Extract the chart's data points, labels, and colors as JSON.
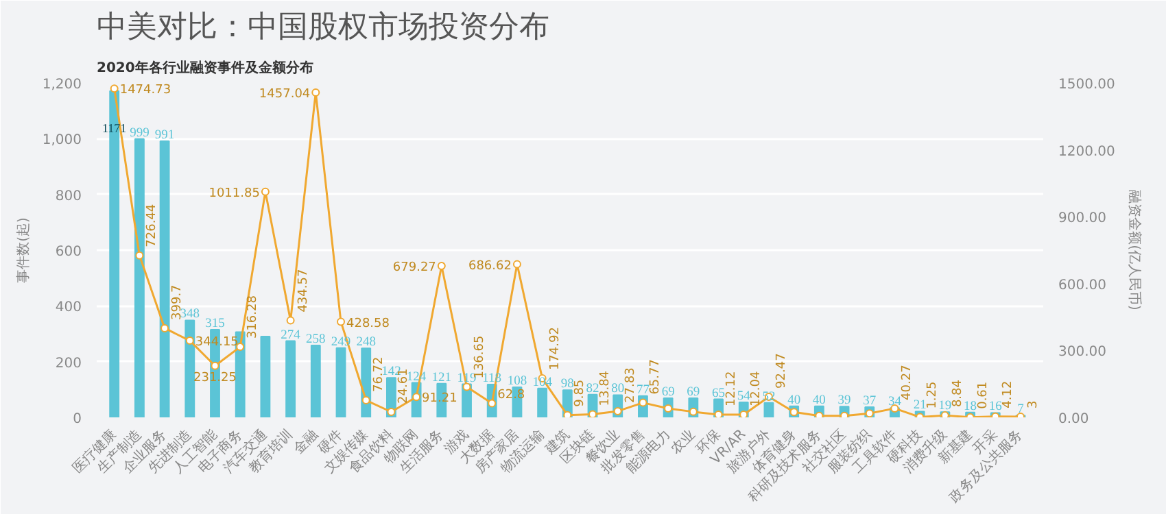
{
  "chart_data": {
    "type": "bar",
    "title": "中美对比：中国股权市场投资分布",
    "subtitle": "2020年各行业融资事件及金额分布",
    "ylabel": "事件数(起)",
    "y2label": "融资金额(亿人民币)",
    "categories": [
      "医疗健康",
      "生产制造",
      "企业服务",
      "先进制造",
      "人工智能",
      "电子商务",
      "汽车交通",
      "教育培训",
      "金融",
      "硬件",
      "文娱传媒",
      "食品饮料",
      "物联网",
      "生活服务",
      "游戏",
      "大数据",
      "房产家居",
      "物流运输",
      "建筑",
      "区块链",
      "餐饮业",
      "批发零售",
      "能源电力",
      "农业",
      "环保",
      "VR/AR",
      "旅游户外",
      "体育健身",
      "科研及技术服务",
      "社交社区",
      "服装纺织",
      "工具软件",
      "硬科技",
      "消费升级",
      "新基建",
      "开采",
      "政务及公共服务"
    ],
    "series": [
      {
        "color": "#5bc4d6",
        "values": [
          1171,
          999,
          991,
          348,
          315,
          306,
          290,
          274,
          258,
          249,
          248,
          142,
          124,
          121,
          119,
          118,
          108,
          104,
          98,
          82,
          80,
          77,
          69,
          69,
          65,
          54,
          52,
          40,
          40,
          39,
          37,
          34,
          21,
          19,
          18,
          16,
          7
        ],
        "value_labels": [
          "1171",
          "999",
          "991",
          "348",
          "315",
          null,
          null,
          "274",
          "258",
          "249",
          "248",
          "142",
          "124",
          "121",
          "119",
          "118",
          "108",
          "104",
          "98",
          "82",
          "80",
          "77",
          "69",
          "69",
          "65",
          "54",
          "52",
          "40",
          "40",
          "39",
          "37",
          "34",
          "21",
          "19",
          "18",
          "16",
          "7"
        ]
      },
      {
        "type": "line",
        "axis": "y2",
        "color": "#f0a830",
        "marker": "circle",
        "values": [
          1474.73,
          726.44,
          399.7,
          344.15,
          231.25,
          316.28,
          1011.85,
          434.57,
          1457.04,
          428.58,
          76.72,
          24.61,
          91.21,
          679.27,
          136.65,
          62.8,
          686.62,
          174.92,
          9.85,
          13.84,
          27.83,
          65.77,
          40,
          25,
          12.12,
          12.04,
          92.47,
          24,
          7,
          7,
          18,
          40.27,
          1.25,
          8.84,
          0.61,
          4.12,
          3
        ],
        "value_labels": [
          "1474.73",
          "726.44",
          "399.7",
          "344.15",
          "231.25",
          "316.28",
          "1011.85",
          "434.57",
          "1457.04",
          "428.58",
          "76.72",
          "24.61",
          "91.21",
          "679.27",
          "136.65",
          "62.8",
          "686.62",
          "174.92",
          "9.85",
          "13.84",
          "27.83",
          "65.77",
          null,
          null,
          "12.12",
          "12.04",
          "92.47",
          null,
          null,
          null,
          null,
          "40.27",
          "1.25",
          "8.84",
          "0.61",
          "4.12",
          "3"
        ]
      }
    ],
    "ylim": [
      0,
      1200
    ],
    "yticks": [
      0,
      200,
      400,
      600,
      800,
      {
        "value": 1000,
        "label": "1,000"
      },
      {
        "value": 1200,
        "label": "1,200"
      }
    ],
    "y2lim": [
      0,
      1500
    ],
    "y2ticks": [
      {
        "value": 0,
        "label": "0.00"
      },
      {
        "value": 300,
        "label": "300.00"
      },
      {
        "value": 600,
        "label": "600.00"
      },
      {
        "value": 900,
        "label": "900.00"
      },
      {
        "value": 1200,
        "label": "1200.00"
      },
      {
        "value": 1500,
        "label": "1500.00"
      }
    ],
    "grid": "y"
  }
}
